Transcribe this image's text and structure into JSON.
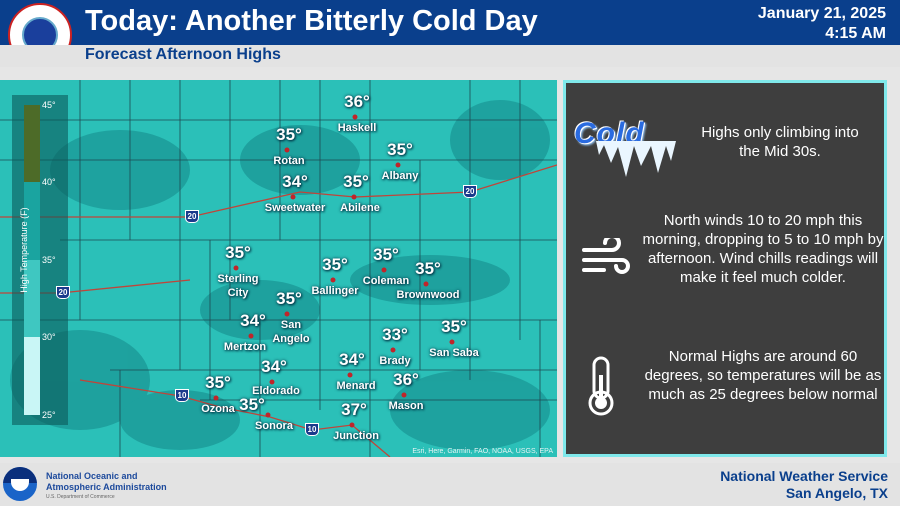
{
  "header": {
    "title": "Today: Another Bitterly Cold Day",
    "subtitle": "Forecast Afternoon Highs",
    "date": "January 21, 2025",
    "time": "4:15 AM",
    "logo_text": "NATIONAL WEATHER SERVICE"
  },
  "legend": {
    "title": "High Temperature (F)",
    "ticks": [
      "45°",
      "40°",
      "35°",
      "30°",
      "25°"
    ],
    "colors": [
      "#4d6b28",
      "#1aa4a0",
      "#3fc7c1",
      "#c9f6f6"
    ]
  },
  "interstates": [
    "20",
    "20",
    "20",
    "10",
    "10"
  ],
  "cities": [
    {
      "name": "Haskell",
      "high": "36°"
    },
    {
      "name": "Rotan",
      "high": "35°"
    },
    {
      "name": "Albany",
      "high": "35°"
    },
    {
      "name": "Sweetwater",
      "high": "34°"
    },
    {
      "name": "Abilene",
      "high": "35°"
    },
    {
      "name": "Sterling City",
      "high": "35°"
    },
    {
      "name": "Ballinger",
      "high": "35°"
    },
    {
      "name": "Coleman",
      "high": "35°"
    },
    {
      "name": "Brownwood",
      "high": "35°"
    },
    {
      "name": "San Angelo",
      "high": "35°"
    },
    {
      "name": "Mertzon",
      "high": "34°"
    },
    {
      "name": "Brady",
      "high": "33°"
    },
    {
      "name": "San Saba",
      "high": "35°"
    },
    {
      "name": "Menard",
      "high": "34°"
    },
    {
      "name": "Eldorado",
      "high": "34°"
    },
    {
      "name": "Ozona",
      "high": "35°"
    },
    {
      "name": "Sonora",
      "high": "35°"
    },
    {
      "name": "Mason",
      "high": "36°"
    },
    {
      "name": "Junction",
      "high": "37°"
    }
  ],
  "map_credit": "Esri, Here, Garmin, FAO, NOAA, USGS, EPA",
  "panel": {
    "cold_word": "Cold",
    "highs_text": "Highs only climbing into the Mid 30s.",
    "wind_text": "North winds 10 to 20 mph this morning, dropping to 5 to 10 mph by afternoon. Wind chills readings will make it feel much colder.",
    "normal_text": "Normal Highs are around 60 degrees, so temperatures will be as much as 25 degrees below normal"
  },
  "footer": {
    "noaa_line1": "National Oceanic and",
    "noaa_line2": "Atmospheric Administration",
    "noaa_sub": "U.S. Department of Commerce",
    "noaa_logo": "NOAA",
    "office_line1": "National Weather Service",
    "office_line2": "San Angelo, TX"
  }
}
